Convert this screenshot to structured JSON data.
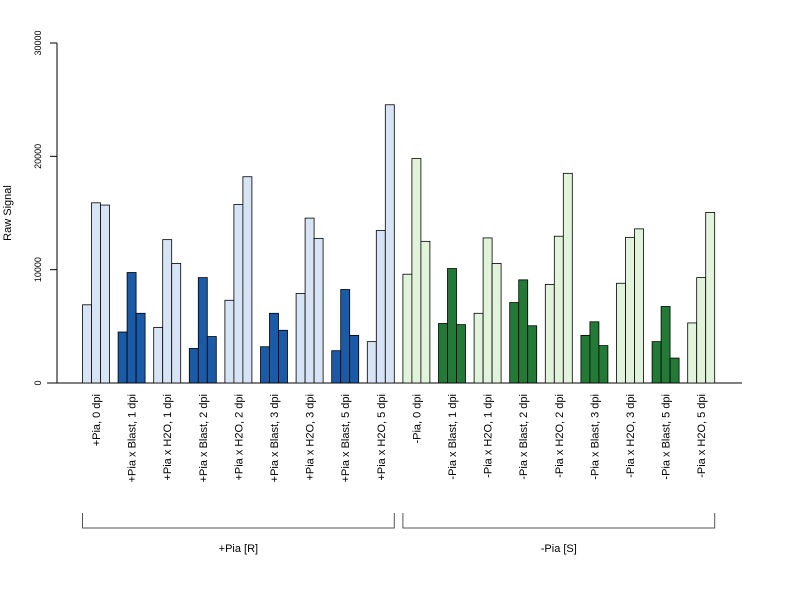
{
  "chart_data": {
    "type": "bar",
    "ylabel": "Raw Signal",
    "xlabel": "",
    "ylim": [
      0,
      30000
    ],
    "yticks": [
      "0",
      "10000",
      "20000",
      "30000"
    ],
    "grid": false,
    "categories": [
      "+Pia, 0 dpi",
      "+Pia x Blast, 1 dpi",
      "+Pia x H2O, 1 dpi",
      "+Pia x Blast, 2 dpi",
      "+Pia x H2O, 2 dpi",
      "+Pia x Blast, 3 dpi",
      "+Pia x H2O, 3 dpi",
      "+Pia x Blast, 5 dpi",
      "+Pia x H2O, 5 dpi",
      "-Pia, 0 dpi",
      "-Pia x Blast, 1 dpi",
      "-Pia x H2O, 1 dpi",
      "-Pia x Blast, 2 dpi",
      "-Pia x H2O, 2 dpi",
      "-Pia x Blast, 3 dpi",
      "-Pia x H2O, 3 dpi",
      "-Pia x Blast, 5 dpi",
      "-Pia x H2O, 5 dpi"
    ],
    "values": [
      [
        6900,
        15900,
        15700
      ],
      [
        4500,
        9750,
        6150
      ],
      [
        4900,
        12650,
        10550
      ],
      [
        3050,
        9300,
        4100
      ],
      [
        7300,
        15750,
        18200
      ],
      [
        3200,
        6150,
        4650
      ],
      [
        7900,
        14550,
        12750
      ],
      [
        2850,
        8250,
        4200
      ],
      [
        3650,
        13450,
        24550
      ],
      [
        9600,
        19800,
        12500
      ],
      [
        5250,
        10100,
        5150
      ],
      [
        6150,
        12800,
        10550
      ],
      [
        7100,
        9100,
        5050
      ],
      [
        8700,
        12950,
        18500
      ],
      [
        4200,
        5400,
        3300
      ],
      [
        8800,
        12850,
        13600
      ],
      [
        3650,
        6750,
        2200
      ],
      [
        5300,
        9300,
        15050
      ]
    ],
    "bar_colors": [
      "#d6e4f5",
      "#1a5aa6",
      "#d6e4f5",
      "#1a5aa6",
      "#d6e4f5",
      "#1a5aa6",
      "#d6e4f5",
      "#1a5aa6",
      "#d6e4f5",
      "#e2f3dc",
      "#237a36",
      "#e2f3dc",
      "#237a36",
      "#e2f3dc",
      "#237a36",
      "#e2f3dc",
      "#237a36",
      "#e2f3dc"
    ],
    "groups": [
      {
        "label": "+Pia [R]",
        "start": 0,
        "end": 8
      },
      {
        "label": "-Pia [S]",
        "start": 9,
        "end": 17
      }
    ]
  }
}
